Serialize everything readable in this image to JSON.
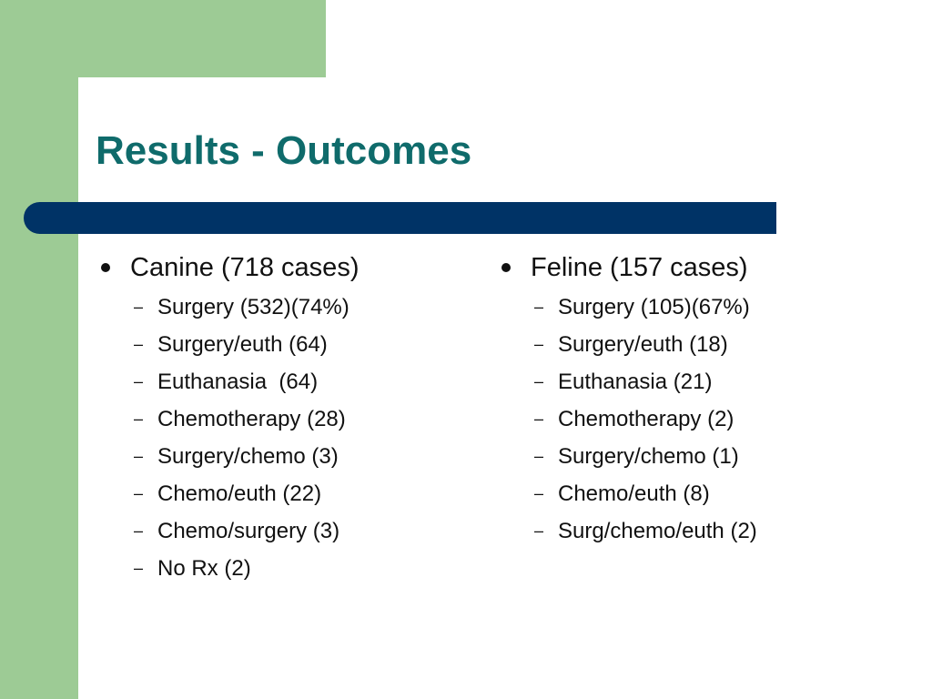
{
  "slide": {
    "title": "Results - Outcomes",
    "colors": {
      "title": "#0f6b6b",
      "bar": "#003366",
      "accent_green": "#9dcb95"
    },
    "canine": {
      "label": "Canine (718 cases)",
      "items": [
        "Surgery (532)(74%)",
        "Surgery/euth (64)",
        "Euthanasia  (64)",
        "Chemotherapy (28)",
        "Surgery/chemo (3)",
        "Chemo/euth (22)",
        "Chemo/surgery (3)",
        "No Rx (2)"
      ]
    },
    "feline": {
      "label": "Feline (157 cases)",
      "items": [
        "Surgery (105)(67%)",
        "Surgery/euth (18)",
        "Euthanasia (21)",
        "Chemotherapy (2)",
        "Surgery/chemo (1)",
        "Chemo/euth (8)",
        "Surg/chemo/euth (2)"
      ]
    }
  }
}
